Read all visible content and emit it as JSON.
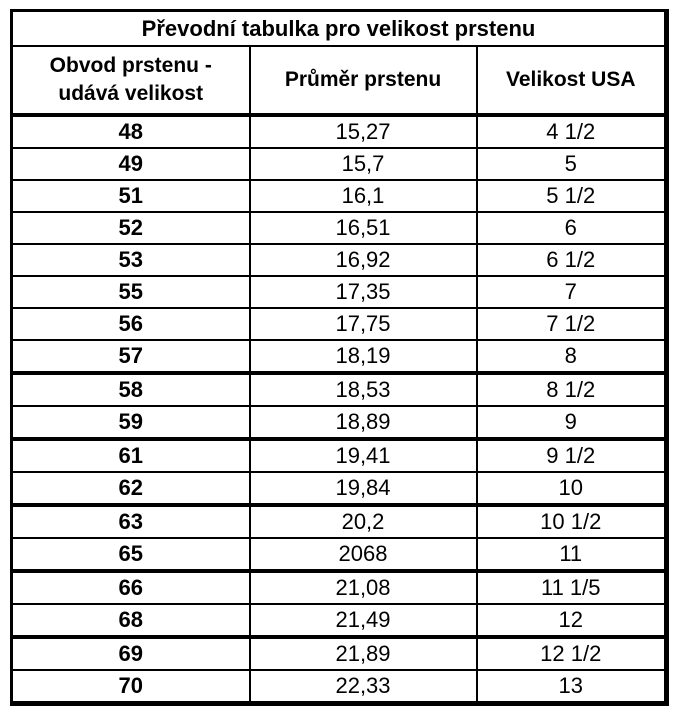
{
  "title": "Převodní tabulka pro velikost prstenu",
  "headers": {
    "col1_line1": "Obvod prstenu -",
    "col1_line2": "udává velikost",
    "col2": "Průměr prstenu",
    "col3": "Velikost USA"
  },
  "rows": [
    {
      "obvod": "48",
      "prumer": "15,27",
      "usa": "4 1/2"
    },
    {
      "obvod": "49",
      "prumer": "15,7",
      "usa": "5"
    },
    {
      "obvod": "51",
      "prumer": "16,1",
      "usa": "5 1/2"
    },
    {
      "obvod": "52",
      "prumer": "16,51",
      "usa": "6"
    },
    {
      "obvod": "53",
      "prumer": "16,92",
      "usa": "6 1/2"
    },
    {
      "obvod": "55",
      "prumer": "17,35",
      "usa": "7"
    },
    {
      "obvod": "56",
      "prumer": "17,75",
      "usa": "7 1/2"
    },
    {
      "obvod": "57",
      "prumer": "18,19",
      "usa": "8"
    },
    {
      "obvod": "58",
      "prumer": "18,53",
      "usa": "8 1/2"
    },
    {
      "obvod": "59",
      "prumer": "18,89",
      "usa": "9"
    },
    {
      "obvod": "61",
      "prumer": "19,41",
      "usa": "9 1/2"
    },
    {
      "obvod": "62",
      "prumer": "19,84",
      "usa": "10"
    },
    {
      "obvod": "63",
      "prumer": "20,2",
      "usa": "10 1/2"
    },
    {
      "obvod": "65",
      "prumer": "2068",
      "usa": "11"
    },
    {
      "obvod": "66",
      "prumer": "21,08",
      "usa": "11 1/5"
    },
    {
      "obvod": "68",
      "prumer": "21,49",
      "usa": "12"
    },
    {
      "obvod": "69",
      "prumer": "21,89",
      "usa": "12 1/2"
    },
    {
      "obvod": "70",
      "prumer": "22,33",
      "usa": "13"
    }
  ],
  "colors": {
    "text": "#000000",
    "border": "#000000",
    "background": "#ffffff"
  }
}
